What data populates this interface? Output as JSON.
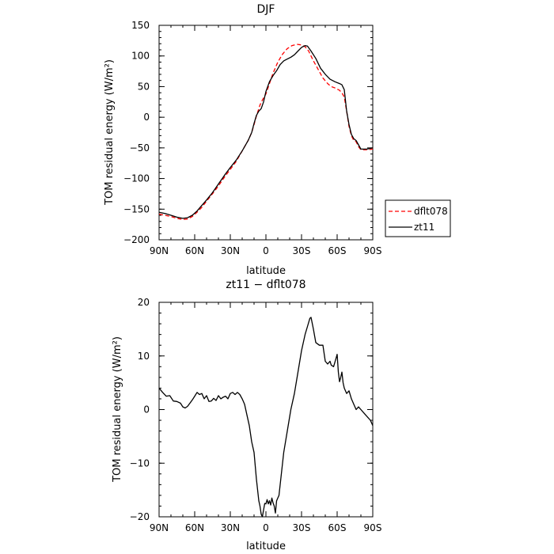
{
  "chart_data": [
    {
      "type": "line",
      "title": "DJF",
      "xlabel": "latitude",
      "ylabel": "TOM residual energy (W/m²)",
      "x_ticks": [
        90,
        60,
        30,
        0,
        -30,
        -60,
        -90
      ],
      "x_tick_labels": [
        "90N",
        "60N",
        "30N",
        "0",
        "30S",
        "60S",
        "90S"
      ],
      "xlim": [
        90,
        -90
      ],
      "ylim": [
        -200,
        150
      ],
      "y_ticks": [
        -200,
        -150,
        -100,
        -50,
        0,
        50,
        100,
        150
      ],
      "y_tick_labels": [
        "−200",
        "−150",
        "−100",
        "−50",
        "0",
        "50",
        "100",
        "150"
      ],
      "legend_position": "right",
      "series": [
        {
          "name": "dflt078",
          "color": "#ff0000",
          "dash": "dashed",
          "points": [
            [
              90,
              -158
            ],
            [
              85,
              -160
            ],
            [
              80,
              -162
            ],
            [
              75,
              -165
            ],
            [
              70,
              -167
            ],
            [
              66,
              -166
            ],
            [
              62,
              -162
            ],
            [
              58,
              -155
            ],
            [
              54,
              -147
            ],
            [
              50,
              -137
            ],
            [
              45,
              -125
            ],
            [
              40,
              -112
            ],
            [
              35,
              -98
            ],
            [
              30,
              -85
            ],
            [
              25,
              -72
            ],
            [
              20,
              -55
            ],
            [
              15,
              -38
            ],
            [
              12,
              -25
            ],
            [
              10,
              -12
            ],
            [
              8,
              2
            ],
            [
              5,
              20
            ],
            [
              3,
              28
            ],
            [
              0,
              38
            ],
            [
              -3,
              55
            ],
            [
              -6,
              72
            ],
            [
              -10,
              90
            ],
            [
              -14,
              103
            ],
            [
              -18,
              112
            ],
            [
              -22,
              117
            ],
            [
              -26,
              119
            ],
            [
              -30,
              118
            ],
            [
              -33,
              115
            ],
            [
              -36,
              108
            ],
            [
              -40,
              92
            ],
            [
              -44,
              78
            ],
            [
              -48,
              64
            ],
            [
              -52,
              55
            ],
            [
              -55,
              50
            ],
            [
              -58,
              48
            ],
            [
              -62,
              44
            ],
            [
              -64,
              40
            ],
            [
              -66,
              33
            ],
            [
              -68,
              10
            ],
            [
              -70,
              -15
            ],
            [
              -72,
              -30
            ],
            [
              -74,
              -38
            ],
            [
              -76,
              -40
            ],
            [
              -78,
              -48
            ],
            [
              -80,
              -53
            ],
            [
              -85,
              -53
            ],
            [
              -90,
              -52
            ]
          ]
        },
        {
          "name": "zt11",
          "color": "#000000",
          "dash": "solid",
          "points": [
            [
              90,
              -155
            ],
            [
              85,
              -157
            ],
            [
              80,
              -160
            ],
            [
              75,
              -163
            ],
            [
              70,
              -165
            ],
            [
              66,
              -164
            ],
            [
              62,
              -160
            ],
            [
              58,
              -153
            ],
            [
              54,
              -144
            ],
            [
              50,
              -135
            ],
            [
              45,
              -123
            ],
            [
              40,
              -109
            ],
            [
              35,
              -95
            ],
            [
              30,
              -82
            ],
            [
              25,
              -70
            ],
            [
              20,
              -55
            ],
            [
              15,
              -38
            ],
            [
              12,
              -25
            ],
            [
              10,
              -10
            ],
            [
              8,
              3
            ],
            [
              6,
              10
            ],
            [
              4,
              14
            ],
            [
              2,
              25
            ],
            [
              0,
              42
            ],
            [
              -3,
              58
            ],
            [
              -6,
              68
            ],
            [
              -9,
              76
            ],
            [
              -12,
              86
            ],
            [
              -15,
              92
            ],
            [
              -18,
              95
            ],
            [
              -21,
              98
            ],
            [
              -24,
              102
            ],
            [
              -27,
              108
            ],
            [
              -30,
              114
            ],
            [
              -33,
              117
            ],
            [
              -35,
              116
            ],
            [
              -38,
              108
            ],
            [
              -42,
              96
            ],
            [
              -46,
              80
            ],
            [
              -50,
              70
            ],
            [
              -54,
              62
            ],
            [
              -58,
              58
            ],
            [
              -62,
              55
            ],
            [
              -64,
              53
            ],
            [
              -66,
              45
            ],
            [
              -68,
              10
            ],
            [
              -70,
              -12
            ],
            [
              -72,
              -28
            ],
            [
              -74,
              -35
            ],
            [
              -76,
              -38
            ],
            [
              -78,
              -45
            ],
            [
              -80,
              -52
            ],
            [
              -85,
              -52
            ],
            [
              -90,
              -50
            ]
          ]
        }
      ]
    },
    {
      "type": "line",
      "title": "zt11 − dflt078",
      "xlabel": "latitude",
      "ylabel": "TOM residual energy (W/m²)",
      "x_ticks": [
        90,
        60,
        30,
        0,
        -30,
        -60,
        -90
      ],
      "x_tick_labels": [
        "90N",
        "60N",
        "30N",
        "0",
        "30S",
        "60S",
        "90S"
      ],
      "xlim": [
        90,
        -90
      ],
      "ylim": [
        -20,
        20
      ],
      "y_ticks": [
        -20,
        -10,
        0,
        10,
        20
      ],
      "y_tick_labels": [
        "−20",
        "−10",
        "0",
        "10",
        "20"
      ],
      "series": [
        {
          "color": "#000000",
          "dash": "solid",
          "points": [
            [
              90,
              4
            ],
            [
              87,
              3.2
            ],
            [
              84,
              2.5
            ],
            [
              81,
              2.6
            ],
            [
              78,
              1.6
            ],
            [
              75,
              1.5
            ],
            [
              72,
              1.2
            ],
            [
              70,
              0.5
            ],
            [
              68,
              0.3
            ],
            [
              66,
              0.6
            ],
            [
              64,
              1.2
            ],
            [
              62,
              1.8
            ],
            [
              60,
              2.5
            ],
            [
              58,
              3.2
            ],
            [
              56,
              2.8
            ],
            [
              54,
              3
            ],
            [
              52,
              2
            ],
            [
              50,
              2.6
            ],
            [
              48,
              1.5
            ],
            [
              46,
              1.6
            ],
            [
              44,
              2.1
            ],
            [
              42,
              1.7
            ],
            [
              40,
              2.6
            ],
            [
              38,
              2
            ],
            [
              36,
              2.3
            ],
            [
              34,
              2.5
            ],
            [
              32,
              2
            ],
            [
              30,
              3
            ],
            [
              28,
              3.2
            ],
            [
              26,
              2.8
            ],
            [
              24,
              3.2
            ],
            [
              22,
              2.8
            ],
            [
              20,
              2
            ],
            [
              18,
              1
            ],
            [
              16,
              -1
            ],
            [
              14,
              -3
            ],
            [
              12,
              -6
            ],
            [
              10,
              -8
            ],
            [
              8,
              -13
            ],
            [
              6,
              -17
            ],
            [
              5,
              -18
            ],
            [
              4,
              -19.5
            ],
            [
              3,
              -20
            ],
            [
              1,
              -17.5
            ],
            [
              0,
              -17.6
            ],
            [
              -1,
              -16.8
            ],
            [
              -2,
              -17.6
            ],
            [
              -3,
              -17
            ],
            [
              -4,
              -17.8
            ],
            [
              -5,
              -16.5
            ],
            [
              -6,
              -17.4
            ],
            [
              -7,
              -18
            ],
            [
              -8,
              -19.3
            ],
            [
              -9,
              -17
            ],
            [
              -11,
              -16
            ],
            [
              -13,
              -12
            ],
            [
              -15,
              -8
            ],
            [
              -18,
              -4
            ],
            [
              -21,
              0
            ],
            [
              -24,
              3
            ],
            [
              -27,
              7
            ],
            [
              -30,
              11
            ],
            [
              -33,
              14
            ],
            [
              -35,
              15.5
            ],
            [
              -37,
              17
            ],
            [
              -38,
              17.2
            ],
            [
              -40,
              15
            ],
            [
              -42,
              12.5
            ],
            [
              -45,
              12
            ],
            [
              -48,
              12
            ],
            [
              -50,
              9
            ],
            [
              -52,
              8.5
            ],
            [
              -54,
              9
            ],
            [
              -55,
              8.3
            ],
            [
              -57,
              8
            ],
            [
              -59,
              9.5
            ],
            [
              -60,
              10.3
            ],
            [
              -61,
              7
            ],
            [
              -62,
              5.2
            ],
            [
              -63,
              6
            ],
            [
              -64,
              7
            ],
            [
              -65,
              5
            ],
            [
              -66,
              4
            ],
            [
              -68,
              3
            ],
            [
              -70,
              3.5
            ],
            [
              -72,
              2
            ],
            [
              -74,
              1
            ],
            [
              -76,
              0
            ],
            [
              -78,
              0.5
            ],
            [
              -80,
              0
            ],
            [
              -82,
              -0.5
            ],
            [
              -84,
              -1
            ],
            [
              -86,
              -1.5
            ],
            [
              -88,
              -2
            ],
            [
              -90,
              -3
            ]
          ]
        }
      ]
    }
  ]
}
